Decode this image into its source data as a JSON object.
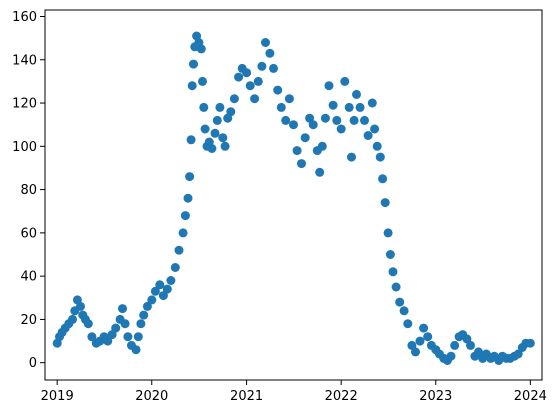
{
  "chart_data": {
    "type": "scatter",
    "title": "",
    "xlabel": "",
    "ylabel": "",
    "x_axis": {
      "kind": "date",
      "range": [
        "2018-11-15",
        "2024-02-15"
      ]
    },
    "ylim": [
      -8,
      163
    ],
    "xticks": [
      {
        "label": "2019",
        "value": "2019-01-01"
      },
      {
        "label": "2020",
        "value": "2020-01-01"
      },
      {
        "label": "2021",
        "value": "2021-01-01"
      },
      {
        "label": "2022",
        "value": "2022-01-01"
      },
      {
        "label": "2023",
        "value": "2023-01-01"
      },
      {
        "label": "2024",
        "value": "2024-01-01"
      }
    ],
    "yticks": [
      {
        "label": "0",
        "value": 0
      },
      {
        "label": "20",
        "value": 20
      },
      {
        "label": "40",
        "value": 40
      },
      {
        "label": "60",
        "value": 60
      },
      {
        "label": "80",
        "value": 80
      },
      {
        "label": "100",
        "value": 100
      },
      {
        "label": "120",
        "value": 120
      },
      {
        "label": "140",
        "value": 140
      },
      {
        "label": "160",
        "value": 160
      }
    ],
    "grid": false,
    "marker_color": "#1f77b4",
    "series": [
      {
        "points": [
          [
            "2019-01-01",
            9
          ],
          [
            "2019-01-10",
            12
          ],
          [
            "2019-01-20",
            14
          ],
          [
            "2019-02-01",
            16
          ],
          [
            "2019-02-15",
            18
          ],
          [
            "2019-03-01",
            20
          ],
          [
            "2019-03-10",
            24
          ],
          [
            "2019-03-20",
            29
          ],
          [
            "2019-04-01",
            26
          ],
          [
            "2019-04-10",
            22
          ],
          [
            "2019-04-20",
            20
          ],
          [
            "2019-05-01",
            18
          ],
          [
            "2019-05-15",
            12
          ],
          [
            "2019-06-01",
            9
          ],
          [
            "2019-06-15",
            10
          ],
          [
            "2019-07-01",
            12
          ],
          [
            "2019-07-15",
            10
          ],
          [
            "2019-08-01",
            13
          ],
          [
            "2019-08-15",
            16
          ],
          [
            "2019-09-01",
            20
          ],
          [
            "2019-09-10",
            25
          ],
          [
            "2019-09-20",
            18
          ],
          [
            "2019-10-01",
            12
          ],
          [
            "2019-10-15",
            8
          ],
          [
            "2019-11-01",
            6
          ],
          [
            "2019-11-10",
            12
          ],
          [
            "2019-11-20",
            18
          ],
          [
            "2019-12-01",
            22
          ],
          [
            "2019-12-15",
            26
          ],
          [
            "2020-01-01",
            29
          ],
          [
            "2020-01-15",
            33
          ],
          [
            "2020-02-01",
            36
          ],
          [
            "2020-02-15",
            31
          ],
          [
            "2020-03-01",
            34
          ],
          [
            "2020-03-15",
            38
          ],
          [
            "2020-04-01",
            44
          ],
          [
            "2020-04-15",
            52
          ],
          [
            "2020-05-01",
            60
          ],
          [
            "2020-05-10",
            68
          ],
          [
            "2020-05-20",
            76
          ],
          [
            "2020-05-26",
            86
          ],
          [
            "2020-06-01",
            103
          ],
          [
            "2020-06-05",
            128
          ],
          [
            "2020-06-10",
            138
          ],
          [
            "2020-06-15",
            146
          ],
          [
            "2020-06-22",
            151
          ],
          [
            "2020-07-01",
            148
          ],
          [
            "2020-07-10",
            145
          ],
          [
            "2020-07-15",
            130
          ],
          [
            "2020-07-20",
            118
          ],
          [
            "2020-07-25",
            108
          ],
          [
            "2020-08-01",
            100
          ],
          [
            "2020-08-10",
            102
          ],
          [
            "2020-08-20",
            99
          ],
          [
            "2020-09-01",
            106
          ],
          [
            "2020-09-10",
            112
          ],
          [
            "2020-09-20",
            118
          ],
          [
            "2020-10-01",
            104
          ],
          [
            "2020-10-10",
            100
          ],
          [
            "2020-10-20",
            113
          ],
          [
            "2020-11-01",
            116
          ],
          [
            "2020-11-15",
            122
          ],
          [
            "2020-12-01",
            132
          ],
          [
            "2020-12-15",
            136
          ],
          [
            "2021-01-01",
            134
          ],
          [
            "2021-01-15",
            128
          ],
          [
            "2021-02-01",
            122
          ],
          [
            "2021-02-15",
            130
          ],
          [
            "2021-03-01",
            137
          ],
          [
            "2021-03-15",
            148
          ],
          [
            "2021-04-01",
            143
          ],
          [
            "2021-04-15",
            136
          ],
          [
            "2021-05-01",
            126
          ],
          [
            "2021-05-15",
            118
          ],
          [
            "2021-06-01",
            112
          ],
          [
            "2021-06-15",
            122
          ],
          [
            "2021-07-01",
            110
          ],
          [
            "2021-07-15",
            98
          ],
          [
            "2021-08-01",
            92
          ],
          [
            "2021-08-15",
            104
          ],
          [
            "2021-09-01",
            113
          ],
          [
            "2021-09-15",
            110
          ],
          [
            "2021-10-01",
            98
          ],
          [
            "2021-10-10",
            88
          ],
          [
            "2021-10-20",
            100
          ],
          [
            "2021-11-01",
            113
          ],
          [
            "2021-11-15",
            128
          ],
          [
            "2021-12-01",
            119
          ],
          [
            "2021-12-15",
            112
          ],
          [
            "2022-01-01",
            108
          ],
          [
            "2022-01-15",
            130
          ],
          [
            "2022-02-01",
            118
          ],
          [
            "2022-02-10",
            95
          ],
          [
            "2022-02-20",
            112
          ],
          [
            "2022-03-01",
            124
          ],
          [
            "2022-03-15",
            118
          ],
          [
            "2022-04-01",
            112
          ],
          [
            "2022-04-15",
            105
          ],
          [
            "2022-05-01",
            120
          ],
          [
            "2022-05-10",
            108
          ],
          [
            "2022-05-20",
            100
          ],
          [
            "2022-06-01",
            95
          ],
          [
            "2022-06-10",
            85
          ],
          [
            "2022-06-20",
            74
          ],
          [
            "2022-07-01",
            60
          ],
          [
            "2022-07-10",
            50
          ],
          [
            "2022-07-20",
            42
          ],
          [
            "2022-08-01",
            35
          ],
          [
            "2022-08-15",
            28
          ],
          [
            "2022-09-01",
            24
          ],
          [
            "2022-09-15",
            18
          ],
          [
            "2022-10-01",
            8
          ],
          [
            "2022-10-15",
            5
          ],
          [
            "2022-11-01",
            10
          ],
          [
            "2022-11-15",
            16
          ],
          [
            "2022-12-01",
            12
          ],
          [
            "2022-12-15",
            8
          ],
          [
            "2023-01-01",
            6
          ],
          [
            "2023-01-15",
            4
          ],
          [
            "2023-02-01",
            2
          ],
          [
            "2023-02-15",
            1
          ],
          [
            "2023-03-01",
            3
          ],
          [
            "2023-03-15",
            8
          ],
          [
            "2023-04-01",
            12
          ],
          [
            "2023-04-15",
            13
          ],
          [
            "2023-05-01",
            11
          ],
          [
            "2023-05-15",
            8
          ],
          [
            "2023-06-01",
            3
          ],
          [
            "2023-06-15",
            5
          ],
          [
            "2023-07-01",
            2
          ],
          [
            "2023-07-15",
            4
          ],
          [
            "2023-08-01",
            2
          ],
          [
            "2023-08-15",
            3
          ],
          [
            "2023-09-01",
            1
          ],
          [
            "2023-09-15",
            3
          ],
          [
            "2023-10-01",
            2
          ],
          [
            "2023-10-15",
            2
          ],
          [
            "2023-11-01",
            3
          ],
          [
            "2023-11-15",
            4
          ],
          [
            "2023-12-01",
            7
          ],
          [
            "2023-12-15",
            9
          ],
          [
            "2024-01-01",
            9
          ]
        ]
      }
    ]
  }
}
